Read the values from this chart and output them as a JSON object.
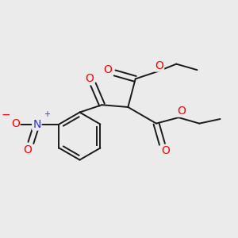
{
  "bg_color": "#ebebeb",
  "bond_color": "#1a1a1a",
  "oxygen_color": "#ff0000",
  "nitrogen_color": "#3333cc",
  "fig_size": [
    3.0,
    3.0
  ],
  "dpi": 100,
  "xlim": [
    0.2,
    3.2
  ],
  "ylim": [
    0.3,
    3.1
  ]
}
